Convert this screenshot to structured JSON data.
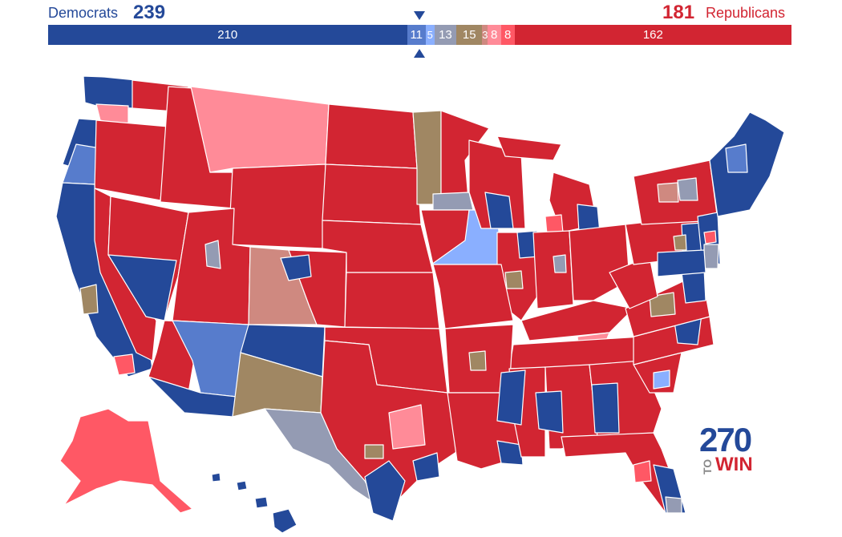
{
  "header": {
    "dem_label": "Democrats",
    "dem_total": "239",
    "rep_total": "181",
    "rep_label": "Republicans"
  },
  "bar": {
    "segments": [
      {
        "key": "safe_dem",
        "label": "210",
        "value": 210,
        "color": "#244999"
      },
      {
        "key": "likely_dem",
        "label": "11",
        "value": 11,
        "color": "#577ccc"
      },
      {
        "key": "lean_dem",
        "label": "5",
        "value": 5,
        "color": "#8aafff"
      },
      {
        "key": "tilt_dem",
        "label": "13",
        "value": 13,
        "color": "#949bb3"
      },
      {
        "key": "tossup",
        "label": "15",
        "value": 15,
        "color": "#a08763"
      },
      {
        "key": "tilt_rep",
        "label": "3",
        "value": 3,
        "color": "#cf8980"
      },
      {
        "key": "lean_rep",
        "label": "8",
        "value": 8,
        "color": "#ff8b98"
      },
      {
        "key": "likely_rep",
        "label": "8",
        "value": 8,
        "color": "#ff5865"
      },
      {
        "key": "safe_rep",
        "label": "162",
        "value": 162,
        "color": "#d22532"
      }
    ]
  },
  "colors": {
    "safe_dem": "#244999",
    "likely_dem": "#577ccc",
    "lean_dem": "#8aafff",
    "tilt_dem": "#949bb3",
    "tossup": "#a08763",
    "tilt_rep": "#cf8980",
    "lean_rep": "#ff8b98",
    "likely_rep": "#ff5865",
    "safe_rep": "#d22532",
    "border": "#ffffff"
  },
  "logo": {
    "number": "270",
    "to": "TO",
    "win": "WIN"
  }
}
